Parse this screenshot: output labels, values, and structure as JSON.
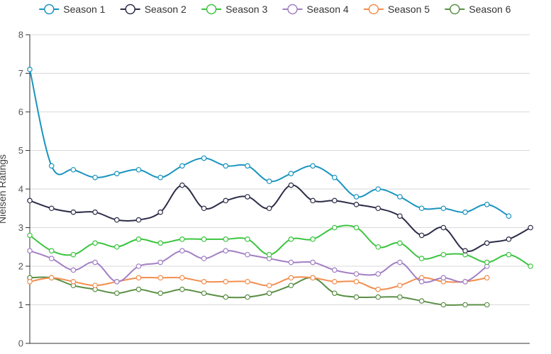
{
  "chart_data": {
    "type": "line",
    "title": "",
    "xlabel": "",
    "ylabel": "Nielsen Ratings",
    "ylim": [
      0,
      8
    ],
    "yticks": [
      0,
      1,
      2,
      3,
      4,
      5,
      6,
      7,
      8
    ],
    "grid": true,
    "legend_position": "top",
    "x_count": 25,
    "series": [
      {
        "name": "Season 1",
        "color": "#1a94bf",
        "values": [
          7.1,
          4.6,
          4.5,
          4.3,
          4.4,
          4.5,
          4.3,
          4.6,
          4.8,
          4.6,
          4.6,
          4.2,
          4.4,
          4.6,
          4.3,
          3.8,
          4.0,
          3.8,
          3.5,
          3.5,
          3.4,
          3.6,
          3.3
        ]
      },
      {
        "name": "Season 2",
        "color": "#2c2c48",
        "values": [
          3.7,
          3.5,
          3.4,
          3.4,
          3.2,
          3.2,
          3.4,
          4.1,
          3.5,
          3.7,
          3.8,
          3.5,
          4.1,
          3.7,
          3.7,
          3.6,
          3.5,
          3.3,
          2.8,
          3.0,
          2.4,
          2.6,
          2.7,
          3.0
        ]
      },
      {
        "name": "Season 3",
        "color": "#3bc43f",
        "values": [
          2.8,
          2.4,
          2.3,
          2.6,
          2.5,
          2.7,
          2.6,
          2.7,
          2.7,
          2.7,
          2.7,
          2.3,
          2.7,
          2.7,
          3.0,
          3.0,
          2.5,
          2.6,
          2.2,
          2.3,
          2.3,
          2.1,
          2.3,
          2.0
        ]
      },
      {
        "name": "Season 4",
        "color": "#a27fc4",
        "values": [
          2.4,
          2.2,
          1.9,
          2.1,
          1.6,
          2.0,
          2.1,
          2.4,
          2.2,
          2.4,
          2.3,
          2.2,
          2.1,
          2.1,
          1.9,
          1.8,
          1.8,
          2.1,
          1.6,
          1.7,
          1.6,
          2.0
        ]
      },
      {
        "name": "Season 5",
        "color": "#f28e4f",
        "values": [
          1.6,
          1.7,
          1.6,
          1.5,
          1.6,
          1.7,
          1.7,
          1.7,
          1.6,
          1.6,
          1.6,
          1.5,
          1.7,
          1.7,
          1.6,
          1.6,
          1.4,
          1.5,
          1.7,
          1.6,
          1.6,
          1.7
        ]
      },
      {
        "name": "Season 6",
        "color": "#5a8f45",
        "values": [
          1.7,
          1.7,
          1.5,
          1.4,
          1.3,
          1.4,
          1.3,
          1.4,
          1.3,
          1.2,
          1.2,
          1.3,
          1.5,
          1.7,
          1.3,
          1.2,
          1.2,
          1.2,
          1.1,
          1.0,
          1.0,
          1.0
        ]
      }
    ]
  }
}
